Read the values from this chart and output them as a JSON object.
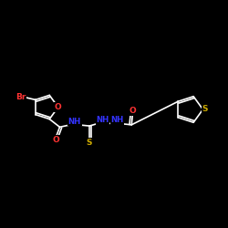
{
  "background_color": "#000000",
  "bond_color": "#ffffff",
  "atom_colors": {
    "Br": "#ff3333",
    "O": "#ff3333",
    "S": "#ccaa00",
    "N": "#3333ff",
    "C": "#ffffff"
  },
  "figsize": [
    2.5,
    2.5
  ],
  "dpi": 100,
  "xlim": [
    0,
    10
  ],
  "ylim": [
    0,
    10
  ]
}
